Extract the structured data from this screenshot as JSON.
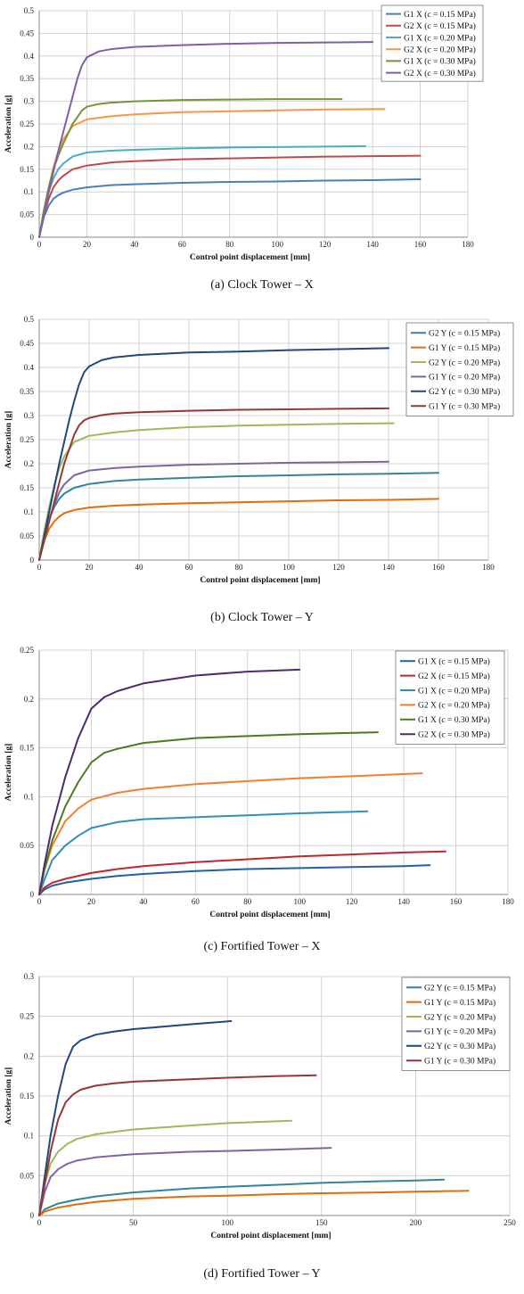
{
  "chart_data": [
    {
      "type": "line",
      "caption": "(a) Clock Tower – X",
      "xlabel": "Control point displacement [mm]",
      "ylabel": "Acceleration [g]",
      "xlim": [
        0,
        180
      ],
      "ylim": [
        0,
        0.5
      ],
      "xticks": [
        "0",
        "20",
        "40",
        "60",
        "80",
        "100",
        "120",
        "140",
        "160",
        "180"
      ],
      "yticks": [
        "0",
        "0.05",
        "0.1",
        "0.15",
        "0.2",
        "0.25",
        "0.3",
        "0.35",
        "0.4",
        "0.45",
        "0.5"
      ],
      "xticks_v": [
        0,
        20,
        40,
        60,
        80,
        100,
        120,
        140,
        160,
        180
      ],
      "yticks_v": [
        0,
        0.05,
        0.1,
        0.15,
        0.2,
        0.25,
        0.3,
        0.35,
        0.4,
        0.45,
        0.5
      ],
      "legend": "top-right",
      "grid": true,
      "series": [
        {
          "name": "G1 X (c = 0.15 MPa)",
          "color": "#4a7ebb",
          "x": [
            0,
            2,
            4,
            6,
            8,
            10,
            14,
            20,
            30,
            40,
            60,
            80,
            100,
            120,
            140,
            160
          ],
          "y": [
            0,
            0.045,
            0.07,
            0.085,
            0.093,
            0.098,
            0.105,
            0.11,
            0.115,
            0.117,
            0.12,
            0.122,
            0.123,
            0.125,
            0.126,
            0.128
          ]
        },
        {
          "name": "G2 X (c = 0.15 MPa)",
          "color": "#be4b48",
          "x": [
            0,
            2,
            4,
            6,
            8,
            10,
            14,
            20,
            30,
            40,
            60,
            80,
            100,
            120,
            140,
            160
          ],
          "y": [
            0,
            0.05,
            0.085,
            0.11,
            0.125,
            0.135,
            0.15,
            0.158,
            0.165,
            0.168,
            0.172,
            0.174,
            0.176,
            0.178,
            0.179,
            0.18
          ]
        },
        {
          "name": "G1 X (c = 0.20 MPa)",
          "color": "#4bacc6",
          "x": [
            0,
            2,
            4,
            6,
            8,
            10,
            14,
            20,
            30,
            40,
            60,
            80,
            100,
            120,
            137
          ],
          "y": [
            0,
            0.06,
            0.1,
            0.13,
            0.15,
            0.162,
            0.178,
            0.187,
            0.191,
            0.193,
            0.196,
            0.198,
            0.199,
            0.2,
            0.201
          ]
        },
        {
          "name": "G2 X (c = 0.20 MPa)",
          "color": "#f79646",
          "x": [
            0,
            2,
            4,
            6,
            8,
            10,
            14,
            20,
            30,
            40,
            60,
            80,
            100,
            120,
            145
          ],
          "y": [
            0,
            0.06,
            0.11,
            0.155,
            0.19,
            0.215,
            0.245,
            0.26,
            0.267,
            0.271,
            0.276,
            0.278,
            0.28,
            0.282,
            0.283
          ]
        },
        {
          "name": "G1 X (c = 0.30 MPa)",
          "color": "#77933c",
          "x": [
            0,
            2,
            4,
            6,
            8,
            10,
            14,
            18,
            20,
            25,
            30,
            40,
            60,
            80,
            100,
            127
          ],
          "y": [
            0,
            0.06,
            0.11,
            0.15,
            0.18,
            0.205,
            0.25,
            0.28,
            0.288,
            0.294,
            0.297,
            0.3,
            0.303,
            0.304,
            0.305,
            0.305
          ]
        },
        {
          "name": "G2 X (c = 0.30 MPa)",
          "color": "#7f5fa6",
          "x": [
            0,
            2,
            4,
            6,
            8,
            10,
            12,
            14,
            16,
            18,
            20,
            25,
            30,
            40,
            60,
            80,
            100,
            120,
            140
          ],
          "y": [
            0,
            0.05,
            0.1,
            0.145,
            0.19,
            0.23,
            0.27,
            0.31,
            0.35,
            0.38,
            0.397,
            0.41,
            0.415,
            0.42,
            0.424,
            0.427,
            0.429,
            0.43,
            0.431
          ]
        }
      ]
    },
    {
      "type": "line",
      "caption": "(b) Clock Tower – Y",
      "xlabel": "Control point displacement [mm]",
      "ylabel": "Acceleration [g]",
      "xlim": [
        0,
        180
      ],
      "ylim": [
        0,
        0.5
      ],
      "xticks": [
        "0",
        "20",
        "40",
        "60",
        "80",
        "100",
        "120",
        "140",
        "160",
        "180"
      ],
      "yticks": [
        "0",
        "0.05",
        "0.1",
        "0.15",
        "0.2",
        "0.25",
        "0.3",
        "0.35",
        "0.4",
        "0.45",
        "0.5"
      ],
      "xticks_v": [
        0,
        20,
        40,
        60,
        80,
        100,
        120,
        140,
        160,
        180
      ],
      "yticks_v": [
        0,
        0.05,
        0.1,
        0.15,
        0.2,
        0.25,
        0.3,
        0.35,
        0.4,
        0.45,
        0.5
      ],
      "legend": "top-right",
      "grid": true,
      "series": [
        {
          "name": "G2 Y (c = 0.15 MPa)",
          "color": "#31849b",
          "x": [
            0,
            2,
            4,
            6,
            8,
            10,
            14,
            20,
            30,
            40,
            60,
            80,
            100,
            120,
            140,
            160
          ],
          "y": [
            0,
            0.05,
            0.085,
            0.11,
            0.127,
            0.138,
            0.15,
            0.158,
            0.164,
            0.167,
            0.171,
            0.174,
            0.176,
            0.178,
            0.179,
            0.181
          ]
        },
        {
          "name": "G1 Y (c = 0.15 MPa)",
          "color": "#e46c0a",
          "x": [
            0,
            2,
            4,
            6,
            8,
            10,
            14,
            20,
            30,
            40,
            60,
            80,
            100,
            120,
            140,
            160
          ],
          "y": [
            0,
            0.04,
            0.065,
            0.08,
            0.09,
            0.097,
            0.104,
            0.109,
            0.113,
            0.115,
            0.118,
            0.12,
            0.122,
            0.124,
            0.125,
            0.127
          ]
        },
        {
          "name": "G2 Y (c = 0.20 MPa)",
          "color": "#9bbb59",
          "x": [
            0,
            2,
            4,
            6,
            8,
            10,
            14,
            20,
            30,
            40,
            60,
            80,
            100,
            120,
            142
          ],
          "y": [
            0,
            0.06,
            0.11,
            0.155,
            0.19,
            0.215,
            0.245,
            0.258,
            0.265,
            0.27,
            0.276,
            0.279,
            0.281,
            0.283,
            0.284
          ]
        },
        {
          "name": "G1 Y (c = 0.20 MPa)",
          "color": "#8064a2",
          "x": [
            0,
            2,
            4,
            6,
            8,
            10,
            14,
            20,
            30,
            40,
            60,
            80,
            100,
            120,
            140
          ],
          "y": [
            0,
            0.045,
            0.085,
            0.115,
            0.14,
            0.157,
            0.176,
            0.186,
            0.191,
            0.194,
            0.198,
            0.2,
            0.202,
            0.203,
            0.204
          ]
        },
        {
          "name": "G2 Y (c = 0.30 MPa)",
          "color": "#1f497d",
          "x": [
            0,
            2,
            4,
            6,
            8,
            10,
            12,
            14,
            16,
            18,
            20,
            25,
            30,
            40,
            60,
            80,
            100,
            120,
            140
          ],
          "y": [
            0,
            0.05,
            0.1,
            0.15,
            0.2,
            0.245,
            0.29,
            0.33,
            0.365,
            0.39,
            0.402,
            0.415,
            0.421,
            0.426,
            0.431,
            0.433,
            0.436,
            0.438,
            0.44
          ]
        },
        {
          "name": "G1 Y (c = 0.30 MPa)",
          "color": "#953735",
          "x": [
            0,
            2,
            4,
            6,
            8,
            10,
            12,
            14,
            16,
            18,
            20,
            25,
            30,
            40,
            60,
            80,
            100,
            120,
            140
          ],
          "y": [
            0,
            0.04,
            0.08,
            0.12,
            0.16,
            0.2,
            0.23,
            0.26,
            0.28,
            0.29,
            0.295,
            0.301,
            0.304,
            0.307,
            0.31,
            0.312,
            0.313,
            0.314,
            0.315
          ]
        }
      ]
    },
    {
      "type": "line",
      "caption": "(c) Fortified Tower – X",
      "xlabel": "Control point displacement [mm]",
      "ylabel": "Acceleration [g]",
      "xlim": [
        0,
        180
      ],
      "ylim": [
        0,
        0.25
      ],
      "xticks": [
        "0",
        "20",
        "40",
        "60",
        "80",
        "100",
        "120",
        "140",
        "160",
        "180"
      ],
      "yticks": [
        "0",
        "0.05",
        "0.1",
        "0.15",
        "0.2",
        "0.25"
      ],
      "xticks_v": [
        0,
        20,
        40,
        60,
        80,
        100,
        120,
        140,
        160,
        180
      ],
      "yticks_v": [
        0,
        0.05,
        0.1,
        0.15,
        0.2,
        0.25
      ],
      "legend": "top-right",
      "grid": true,
      "series": [
        {
          "name": "G1 X (c = 0.15 MPa)",
          "color": "#1f5fa8",
          "x": [
            0,
            2,
            5,
            10,
            20,
            30,
            40,
            60,
            80,
            100,
            120,
            140,
            150
          ],
          "y": [
            0,
            0.005,
            0.009,
            0.012,
            0.016,
            0.019,
            0.021,
            0.024,
            0.026,
            0.027,
            0.028,
            0.029,
            0.03
          ]
        },
        {
          "name": "G2 X (c = 0.15 MPa)",
          "color": "#c0272d",
          "x": [
            0,
            2,
            5,
            10,
            20,
            30,
            40,
            60,
            80,
            100,
            120,
            140,
            156
          ],
          "y": [
            0,
            0.007,
            0.012,
            0.016,
            0.022,
            0.026,
            0.029,
            0.033,
            0.036,
            0.039,
            0.041,
            0.043,
            0.044
          ]
        },
        {
          "name": "G1 X (c = 0.20 MPa)",
          "color": "#2e8fbd",
          "x": [
            0,
            2,
            5,
            10,
            15,
            20,
            30,
            40,
            60,
            80,
            100,
            126
          ],
          "y": [
            0,
            0.015,
            0.035,
            0.05,
            0.06,
            0.068,
            0.074,
            0.077,
            0.079,
            0.081,
            0.083,
            0.085
          ]
        },
        {
          "name": "G2 X (c = 0.20 MPa)",
          "color": "#f08030",
          "x": [
            0,
            2,
            5,
            10,
            15,
            20,
            30,
            40,
            60,
            80,
            100,
            120,
            147
          ],
          "y": [
            0,
            0.025,
            0.05,
            0.075,
            0.088,
            0.097,
            0.104,
            0.108,
            0.113,
            0.116,
            0.119,
            0.121,
            0.124
          ]
        },
        {
          "name": "G1 X (c = 0.30 MPa)",
          "color": "#4f7a1e",
          "x": [
            0,
            2,
            5,
            10,
            15,
            20,
            25,
            30,
            40,
            60,
            80,
            100,
            130
          ],
          "y": [
            0,
            0.025,
            0.055,
            0.09,
            0.115,
            0.135,
            0.145,
            0.149,
            0.155,
            0.16,
            0.162,
            0.164,
            0.166
          ]
        },
        {
          "name": "G2 X (c = 0.30 MPa)",
          "color": "#4b2a6e",
          "x": [
            0,
            2,
            5,
            10,
            15,
            20,
            25,
            30,
            40,
            60,
            80,
            100
          ],
          "y": [
            0,
            0.03,
            0.07,
            0.12,
            0.16,
            0.19,
            0.202,
            0.208,
            0.216,
            0.224,
            0.228,
            0.23
          ]
        }
      ]
    },
    {
      "type": "line",
      "caption": "(d) Fortified Tower – Y",
      "xlabel": "Control point displacement [mm]",
      "ylabel": "Acceleration [g]",
      "xlim": [
        0,
        250
      ],
      "ylim": [
        0,
        0.3
      ],
      "xticks": [
        "0",
        "50",
        "100",
        "150",
        "200",
        "250"
      ],
      "yticks": [
        "0",
        "0.05",
        "0.1",
        "0.15",
        "0.2",
        "0.25",
        "0.3"
      ],
      "xticks_v": [
        0,
        50,
        100,
        150,
        200,
        250
      ],
      "yticks_v": [
        0,
        0.05,
        0.1,
        0.15,
        0.2,
        0.25,
        0.3
      ],
      "legend": "top-right",
      "grid": true,
      "series": [
        {
          "name": "G2 Y (c = 0.15 MPa)",
          "color": "#31849b",
          "x": [
            0,
            3,
            10,
            20,
            30,
            50,
            80,
            100,
            130,
            150,
            180,
            200,
            215
          ],
          "y": [
            0,
            0.008,
            0.015,
            0.02,
            0.024,
            0.029,
            0.034,
            0.036,
            0.039,
            0.041,
            0.043,
            0.044,
            0.045
          ]
        },
        {
          "name": "G1 Y (c = 0.15 MPa)",
          "color": "#e46c0a",
          "x": [
            0,
            3,
            10,
            20,
            30,
            50,
            80,
            100,
            130,
            150,
            180,
            200,
            228
          ],
          "y": [
            0,
            0.005,
            0.01,
            0.014,
            0.017,
            0.021,
            0.024,
            0.025,
            0.027,
            0.028,
            0.029,
            0.03,
            0.031
          ]
        },
        {
          "name": "G2 Y (c = 0.20 MPa)",
          "color": "#9bbb59",
          "x": [
            0,
            3,
            6,
            10,
            15,
            20,
            30,
            50,
            80,
            100,
            134
          ],
          "y": [
            0,
            0.04,
            0.065,
            0.08,
            0.09,
            0.096,
            0.102,
            0.108,
            0.113,
            0.116,
            0.119
          ]
        },
        {
          "name": "G1 Y (c = 0.20 MPa)",
          "color": "#8064a2",
          "x": [
            0,
            3,
            6,
            10,
            15,
            20,
            30,
            50,
            80,
            100,
            130,
            155
          ],
          "y": [
            0,
            0.03,
            0.048,
            0.058,
            0.065,
            0.069,
            0.073,
            0.077,
            0.08,
            0.081,
            0.083,
            0.085
          ]
        },
        {
          "name": "G2 Y (c = 0.30 MPa)",
          "color": "#1f497d",
          "x": [
            0,
            3,
            6,
            10,
            14,
            18,
            22,
            30,
            40,
            50,
            60,
            80,
            102
          ],
          "y": [
            0,
            0.05,
            0.1,
            0.15,
            0.19,
            0.212,
            0.22,
            0.227,
            0.231,
            0.234,
            0.236,
            0.24,
            0.244
          ]
        },
        {
          "name": "G1 Y (c = 0.30 MPa)",
          "color": "#953735",
          "x": [
            0,
            3,
            6,
            10,
            14,
            18,
            22,
            30,
            40,
            50,
            60,
            80,
            100,
            125,
            147
          ],
          "y": [
            0,
            0.04,
            0.08,
            0.12,
            0.142,
            0.152,
            0.158,
            0.163,
            0.166,
            0.168,
            0.169,
            0.171,
            0.173,
            0.175,
            0.176
          ]
        }
      ]
    }
  ]
}
